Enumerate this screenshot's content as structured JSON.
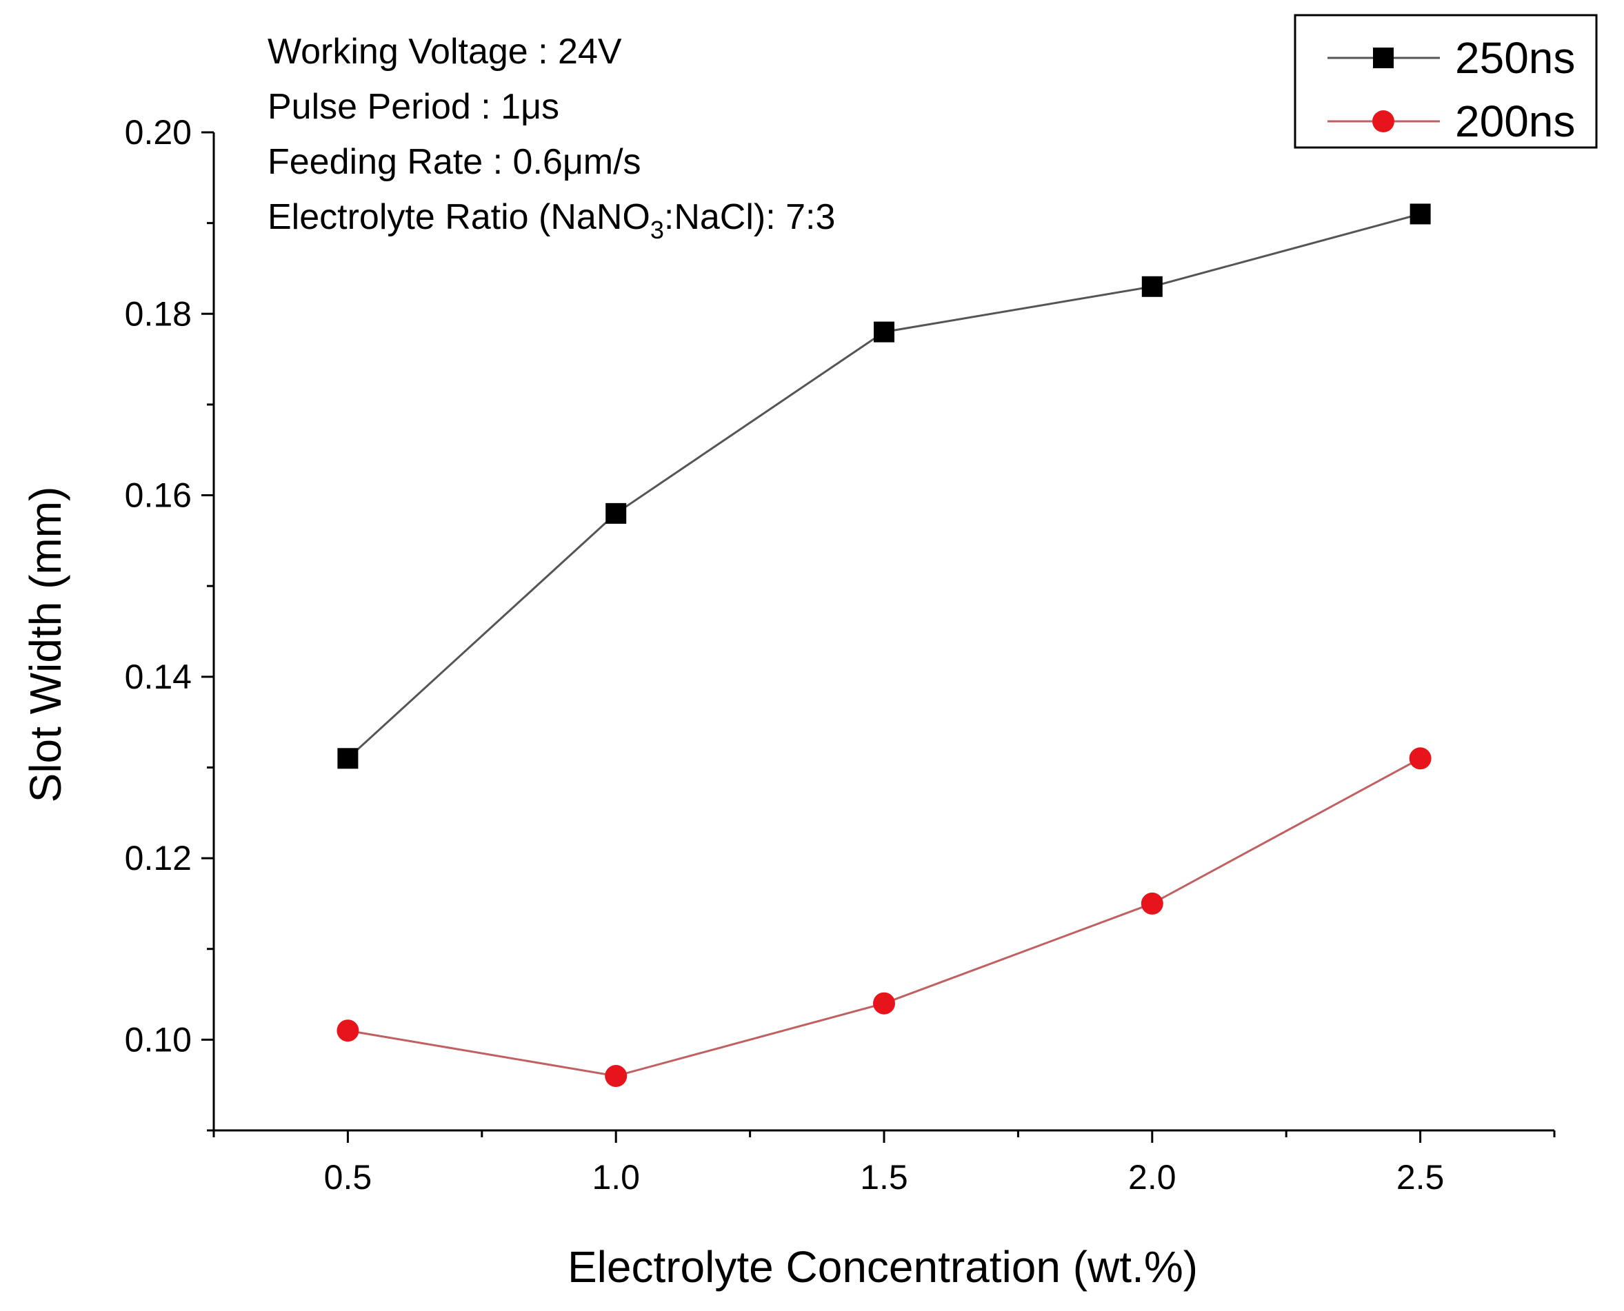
{
  "chart_data": {
    "type": "line",
    "title": "",
    "xlabel": "Electrolyte Concentration (wt.%)",
    "ylabel": "Slot Width (mm)",
    "x": [
      0.5,
      1.0,
      1.5,
      2.0,
      2.5
    ],
    "xlim": [
      0.25,
      2.75
    ],
    "ylim": [
      0.09,
      0.2
    ],
    "x_ticks": [
      "0.5",
      "1.0",
      "1.5",
      "2.0",
      "2.5"
    ],
    "y_ticks": [
      "0.10",
      "0.12",
      "0.14",
      "0.16",
      "0.18",
      "0.20"
    ],
    "grid": false,
    "legend_position": "top-right",
    "series": [
      {
        "name": "250ns",
        "values": [
          0.131,
          0.158,
          0.178,
          0.183,
          0.191
        ],
        "color": "#000000",
        "line_color": "#555555",
        "marker": "square"
      },
      {
        "name": "200ns",
        "values": [
          0.101,
          0.096,
          0.104,
          0.115,
          0.131
        ],
        "color": "#e8141c",
        "line_color": "#c06060",
        "marker": "circle"
      }
    ],
    "annotations": {
      "line1": "Working Voltage : 24V",
      "line2": "Pulse Period : 1μs",
      "line3": "Feeding Rate : 0.6μm/s",
      "line4_prefix": "Electrolyte Ratio (NaNO",
      "line4_subscript": "3",
      "line4_suffix": ":NaCl): 7:3"
    }
  }
}
